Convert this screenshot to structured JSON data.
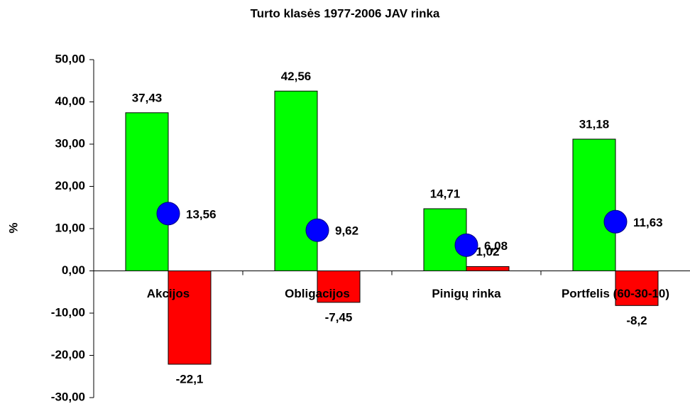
{
  "chart_data": {
    "type": "bar",
    "title": "Turto klasės 1977-2006 JAV rinka",
    "ylabel": "%",
    "categories": [
      "Akcijos",
      "Obligacijos",
      "Pinigų rinka",
      "Portfelis (60-30-10)"
    ],
    "series": [
      {
        "type": "bar",
        "color": "#00ff00",
        "values": [
          37.43,
          42.56,
          14.71,
          31.18
        ],
        "value_labels": [
          "37,43",
          "42,56",
          "14,71",
          "31,18"
        ]
      },
      {
        "type": "bar",
        "color": "#ff0000",
        "values": [
          -22.1,
          -7.45,
          1.02,
          -8.2
        ],
        "value_labels": [
          "-22,1",
          "-7,45",
          "1,02",
          "-8,2"
        ]
      },
      {
        "type": "scatter",
        "color": "#0000ff",
        "values": [
          13.56,
          9.62,
          6.08,
          11.63
        ],
        "value_labels": [
          "13,56",
          "9,62",
          "6,08",
          "11,63"
        ]
      }
    ],
    "ylim": [
      -30,
      50
    ],
    "yticks": [
      {
        "value": -30,
        "label": "-30,00"
      },
      {
        "value": -20,
        "label": "-20,00"
      },
      {
        "value": -10,
        "label": "-10,00"
      },
      {
        "value": 0,
        "label": "0,00"
      },
      {
        "value": 10,
        "label": "10,00"
      },
      {
        "value": 20,
        "label": "20,00"
      },
      {
        "value": 30,
        "label": "30,00"
      },
      {
        "value": 40,
        "label": "40,00"
      },
      {
        "value": 50,
        "label": "50,00"
      }
    ]
  }
}
